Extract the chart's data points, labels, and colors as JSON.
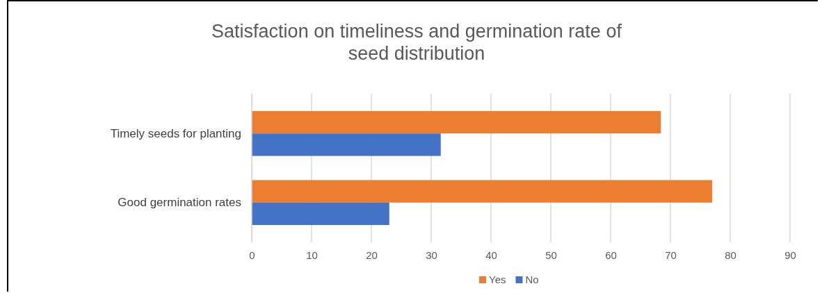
{
  "chart_data": {
    "type": "bar",
    "orientation": "horizontal",
    "title": "Satisfaction on timeliness and germination rate of seed distribution",
    "categories": [
      "Timely seeds for planting",
      "Good germination rates"
    ],
    "series": [
      {
        "name": "Yes",
        "color": "#ed7d31",
        "values": [
          68.4,
          77
        ]
      },
      {
        "name": "No",
        "color": "#4472c4",
        "values": [
          31.6,
          23
        ]
      }
    ],
    "xlim": [
      0,
      90
    ],
    "xticks": [
      0,
      10,
      20,
      30,
      40,
      50,
      60,
      70,
      80,
      90
    ],
    "grid": "x",
    "legend": "bottom"
  }
}
